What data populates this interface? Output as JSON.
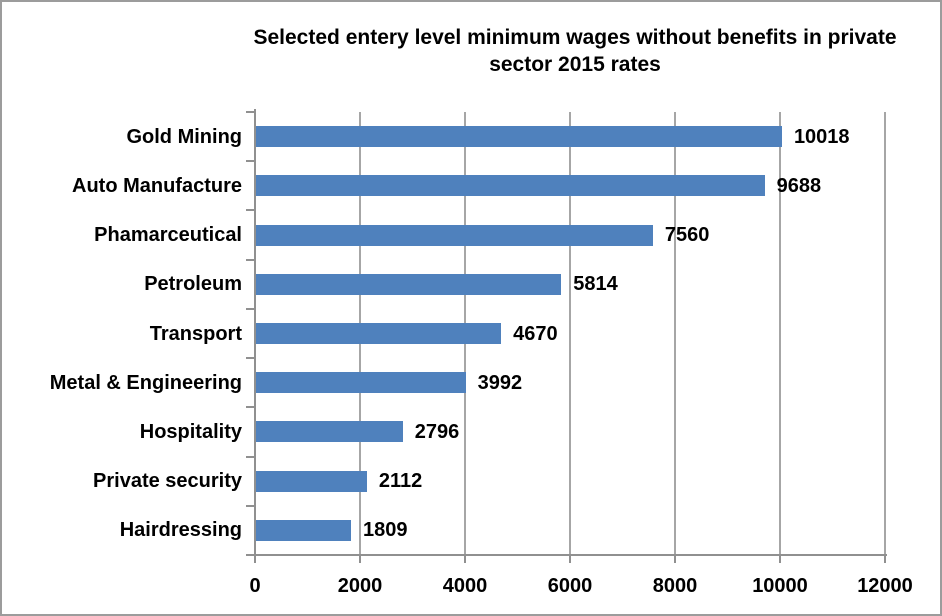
{
  "frame": {
    "background": "#ffffff",
    "border_color": "#9c9c9c"
  },
  "chart_data": {
    "type": "bar",
    "orientation": "horizontal",
    "title": "Selected entery level minimum wages without benefits in private sector 2015 rates",
    "title_lines": [
      "Selected entery level minimum wages without benefits in private",
      "sector 2015 rates"
    ],
    "categories": [
      "Gold Mining",
      "Auto Manufacture",
      "Phamarceutical",
      "Petroleum",
      "Transport",
      "Metal & Engineering",
      "Hospitality",
      "Private security",
      "Hairdressing"
    ],
    "values": [
      10018,
      9688,
      7560,
      5814,
      4670,
      3992,
      2796,
      2112,
      1809
    ],
    "data_labels": [
      "10018",
      "9688",
      "7560",
      "5814",
      "4670",
      "3992",
      "2796",
      "2112",
      "1809"
    ],
    "x_ticks": [
      0,
      2000,
      4000,
      6000,
      8000,
      10000,
      12000
    ],
    "x_tick_labels": [
      "0",
      "2000",
      "4000",
      "6000",
      "8000",
      "10000",
      "12000"
    ],
    "xlim": [
      0,
      12000
    ],
    "xlabel": "",
    "ylabel": "",
    "legend": "none",
    "grid": "vertical-major",
    "colors": {
      "bar": "#4f81bd",
      "gridline": "#a6a6a6",
      "axis": "#909090",
      "text": "#000000"
    }
  }
}
